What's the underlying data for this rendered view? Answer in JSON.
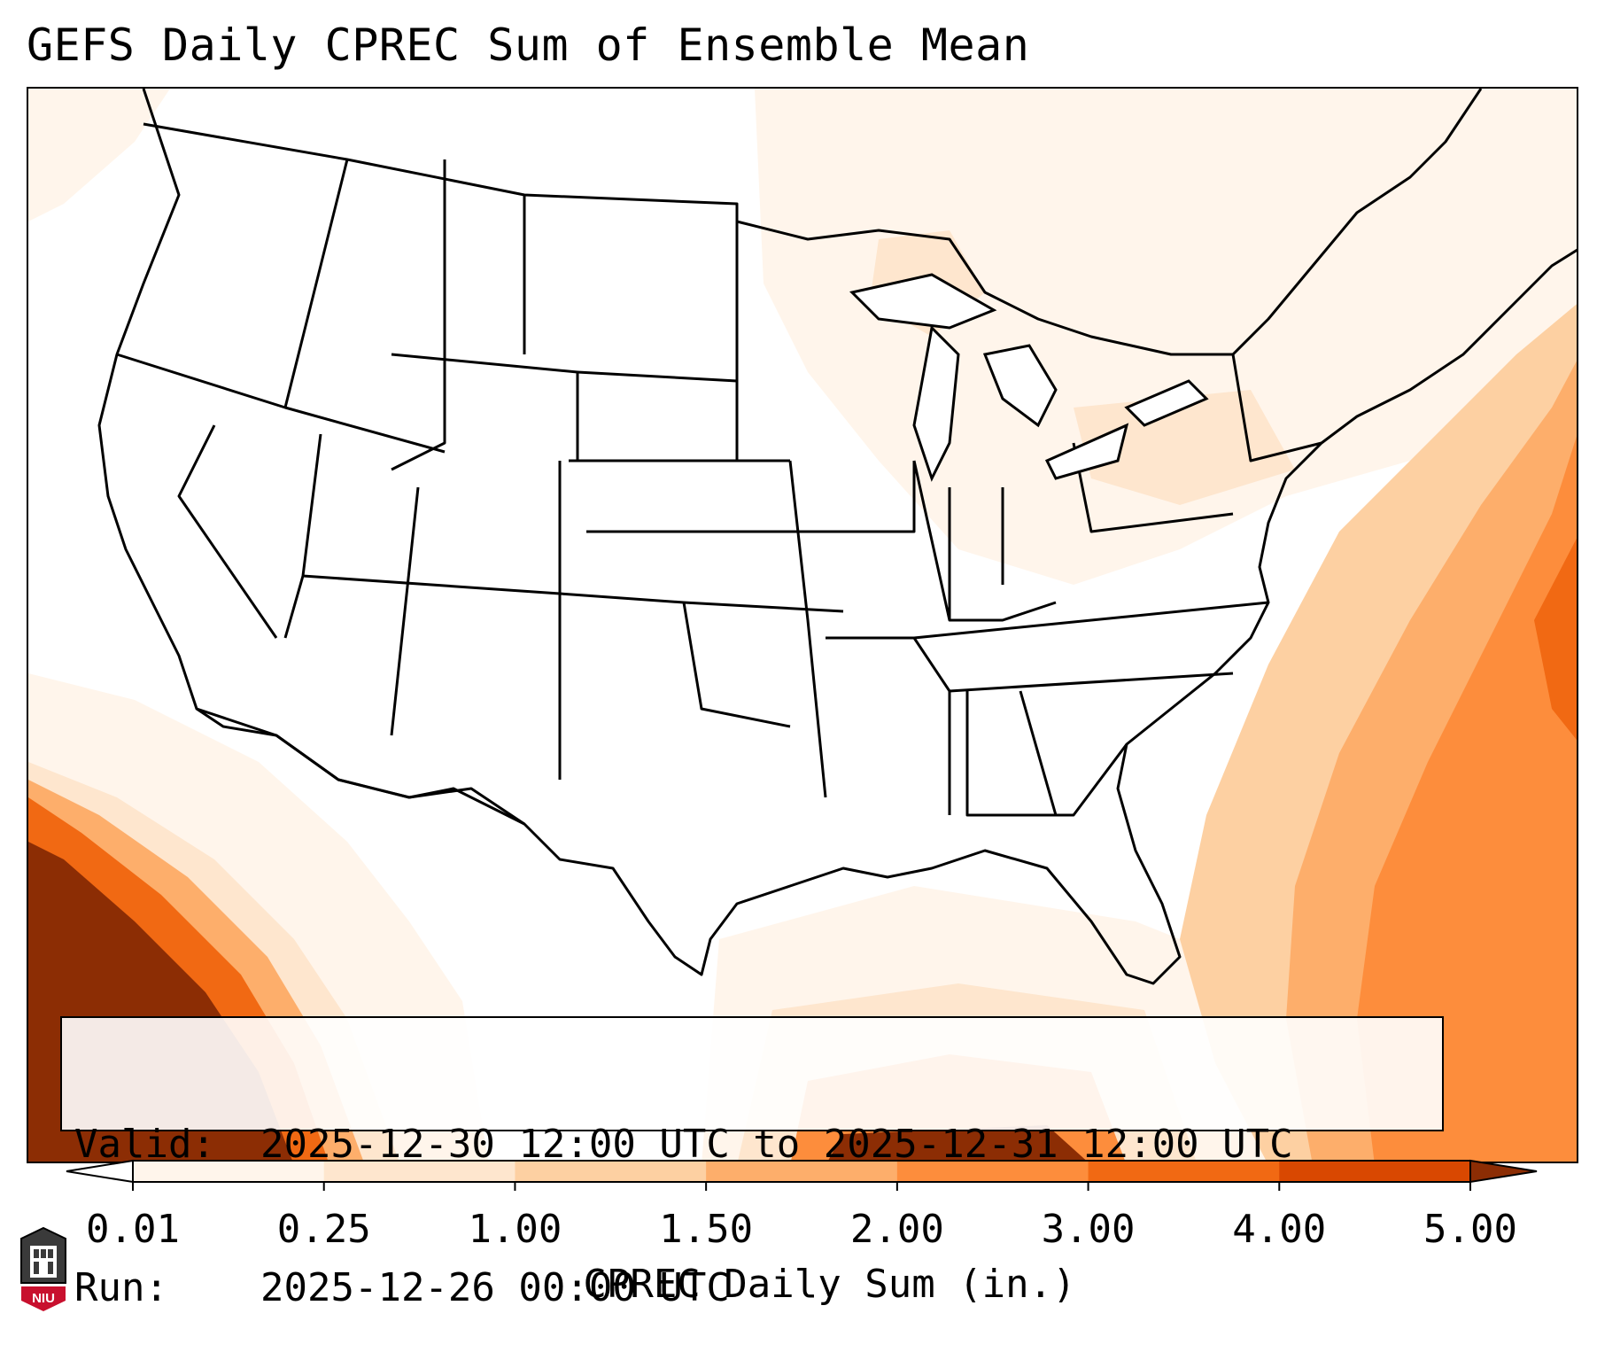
{
  "title": "GEFS Daily CPREC Sum of Ensemble Mean",
  "info": {
    "valid_label": "Valid:",
    "valid_value": "2025-12-30 12:00 UTC to 2025-12-31 12:00 UTC",
    "run_label": "Run:",
    "run_value": "2025-12-26 00:00 UTC"
  },
  "colorbar": {
    "label": "CPREC Daily Sum (in.)",
    "ticks": [
      "0.01",
      "0.25",
      "1.00",
      "1.50",
      "2.00",
      "3.00",
      "4.00",
      "5.00"
    ],
    "colors": [
      "#fff5eb",
      "#fee6ce",
      "#fdd0a2",
      "#fdae6b",
      "#fd8d3c",
      "#f16913",
      "#d94801",
      "#8c2d04"
    ],
    "extend_min_color": "#ffffff",
    "extend_max_color": "#8c2d04"
  },
  "logo": {
    "text": "NIU",
    "icon": "university-tower-icon",
    "color": "#c8102e"
  }
}
